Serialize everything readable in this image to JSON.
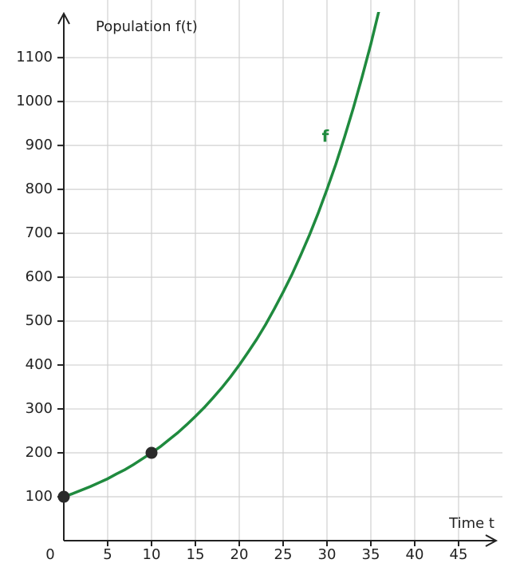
{
  "chart_data": {
    "type": "line",
    "y_label": "Population f(t)",
    "x_label": "Time t",
    "x": [
      0,
      1,
      2,
      3,
      4,
      5,
      6,
      7,
      8,
      9,
      10,
      11,
      12,
      13,
      14,
      15,
      16,
      17,
      18,
      19,
      20,
      21,
      22,
      23,
      24,
      25,
      26,
      27,
      28,
      29,
      30,
      31,
      32,
      33,
      34,
      35,
      36
    ],
    "series": [
      {
        "name": "f",
        "color": "#1f8a3e",
        "values": [
          100,
          107,
          115,
          123,
          132,
          141,
          152,
          162,
          174,
          187,
          200,
          214,
          230,
          246,
          264,
          283,
          303,
          325,
          348,
          373,
          400,
          429,
          459,
          492,
          528,
          566,
          606,
          650,
          696,
          746,
          800,
          857,
          919,
          985,
          1056,
          1131,
          1213
        ]
      }
    ],
    "points": {
      "x": [
        0,
        10
      ],
      "values": [
        100,
        200
      ],
      "color": "#2a2a2a"
    },
    "xlim": [
      0,
      49
    ],
    "ylim": [
      0,
      1204
    ],
    "xticks": [
      0,
      5,
      10,
      15,
      20,
      25,
      30,
      35,
      40,
      45
    ],
    "yticks": [
      100,
      200,
      300,
      400,
      500,
      600,
      700,
      800,
      900,
      1000,
      1100
    ],
    "grid": true
  }
}
